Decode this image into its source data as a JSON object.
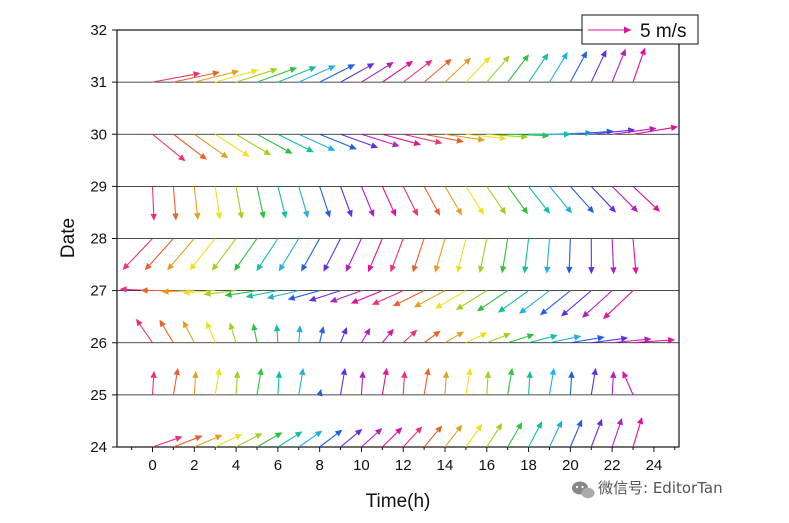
{
  "chart_data": {
    "type": "vector",
    "xlabel": "Time(h)",
    "ylabel": "Date",
    "xlim": [
      -1.7,
      25.2
    ],
    "ylim": [
      24,
      32
    ],
    "x_ticks": [
      0,
      2,
      4,
      6,
      8,
      10,
      12,
      14,
      16,
      18,
      20,
      22,
      24
    ],
    "y_ticks": [
      24,
      25,
      26,
      27,
      28,
      29,
      30,
      31,
      32
    ],
    "legend": {
      "label": "5 m/s",
      "position": "top-right",
      "reference_speed_ms": 5,
      "color": "#e0109a"
    },
    "color_cycle": [
      "#e8327a",
      "#e8602a",
      "#e0a020",
      "#f0e020",
      "#a0d020",
      "#30c040",
      "#10c0a0",
      "#20b0e0",
      "#2060e0",
      "#6030e0",
      "#b020c0",
      "#e010a0"
    ],
    "hours": [
      0,
      1,
      2,
      3,
      4,
      5,
      6,
      7,
      8,
      9,
      10,
      11,
      12,
      13,
      14,
      15,
      16,
      17,
      18,
      19,
      20,
      21,
      22,
      23
    ],
    "rows": [
      {
        "date": 31,
        "type": "ramp",
        "u0": 1.6,
        "v0": 0.3,
        "u1": 0.4,
        "v1": 1.15
      },
      {
        "date": 30,
        "type": "ramp",
        "u0": 1.1,
        "v0": -0.9,
        "u1": 1.5,
        "v1": 0.25
      },
      {
        "date": 29,
        "type": "ramp",
        "u0": 0.05,
        "v0": -1.15,
        "u1": 0.9,
        "v1": -0.85
      },
      {
        "date": 28,
        "type": "ramp",
        "u0": -1.0,
        "v0": -1.05,
        "u1": 0.1,
        "v1": -1.2
      },
      {
        "date": 27,
        "type": "ramp",
        "u0": -1.1,
        "v0": 0.05,
        "u1": -1.0,
        "v1": -0.95
      },
      {
        "date": 26,
        "type": "ramp",
        "u0": -0.55,
        "v0": 0.8,
        "u1": 1.4,
        "v1": 0.1
      },
      {
        "date": 25,
        "type": "alternate",
        "ua": 0.05,
        "va": 0.8,
        "ub": 0.15,
        "vb": 0.9,
        "u_end": -0.35,
        "v_end": 0.8
      },
      {
        "date": 24,
        "type": "ramp",
        "u0": 1.0,
        "v0": 0.35,
        "u1": 0.3,
        "v1": 1.0
      }
    ]
  },
  "watermark": {
    "icon": "wechat-icon",
    "text": "微信号: EditorTan"
  }
}
